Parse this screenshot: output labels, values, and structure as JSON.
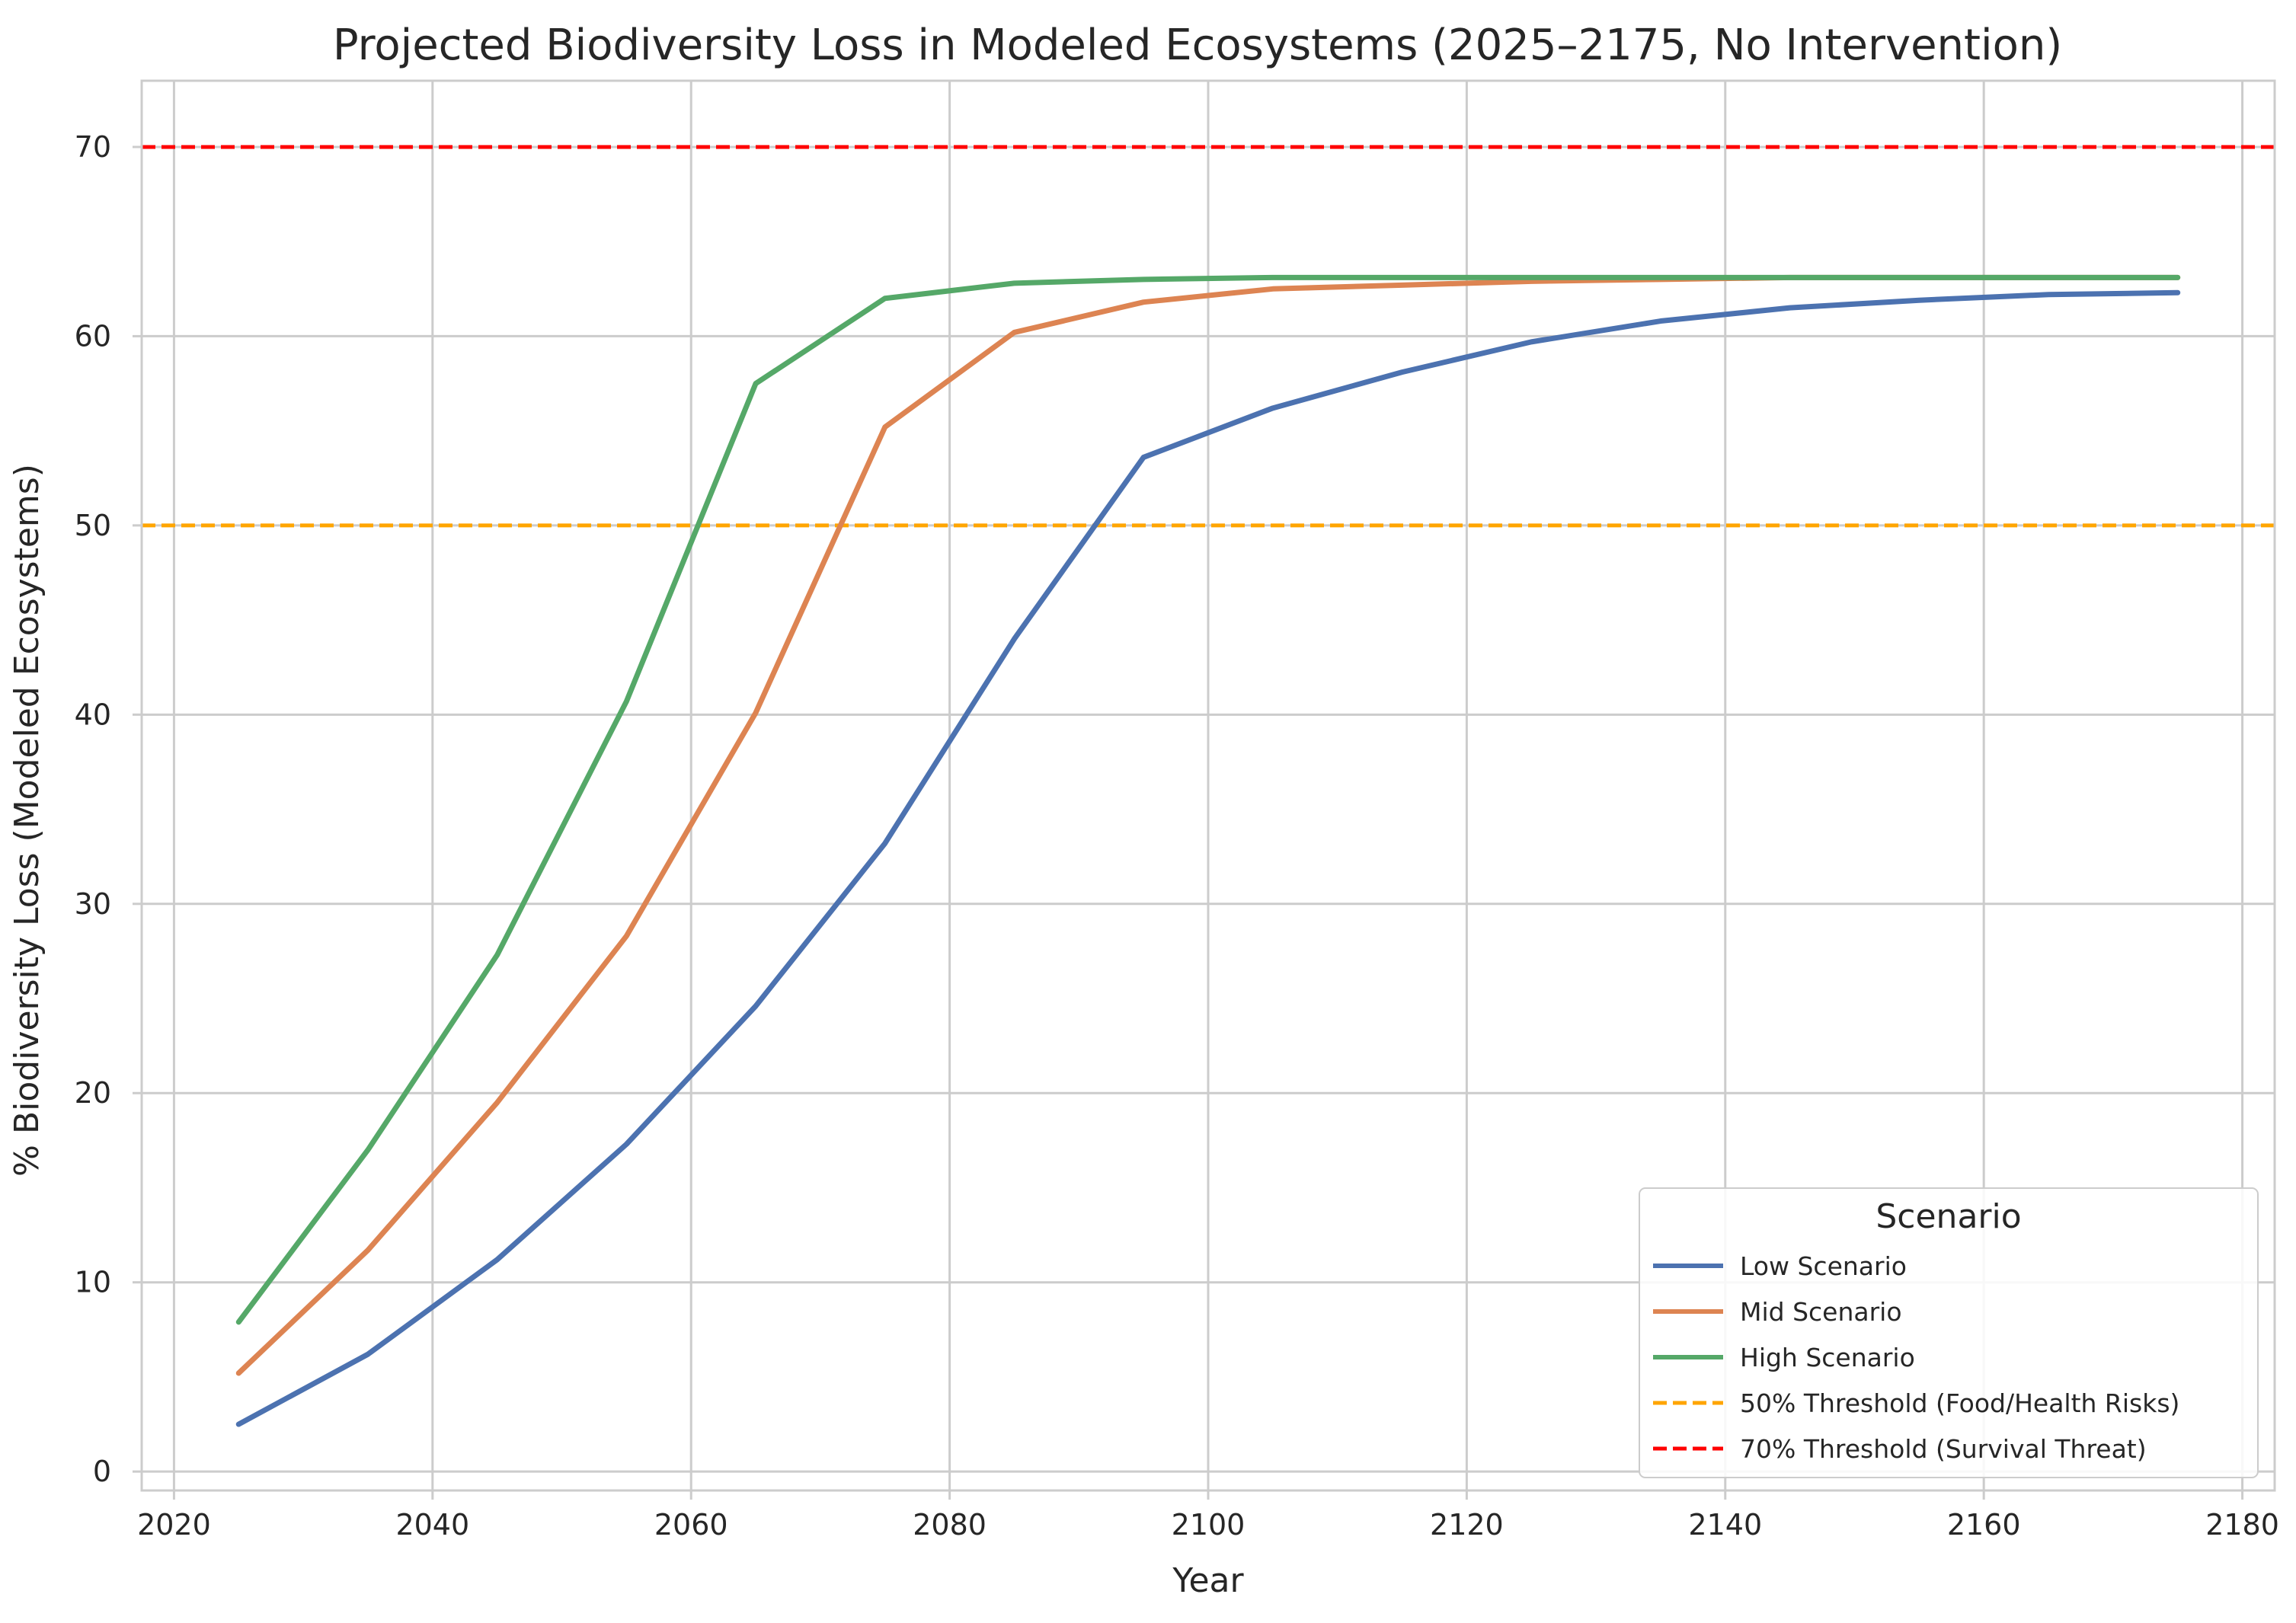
{
  "chart_data": {
    "type": "line",
    "title": "Projected Biodiversity Loss in Modeled Ecosystems (2025–2175, No Intervention)",
    "xlabel": "Year",
    "ylabel": "% Biodiversity Loss (Modeled Ecosystems)",
    "xlim": [
      2017.5,
      2182.5
    ],
    "ylim": [
      -1,
      73.5
    ],
    "xticks": [
      2020,
      2040,
      2060,
      2080,
      2100,
      2120,
      2140,
      2160,
      2180
    ],
    "yticks": [
      0,
      10,
      20,
      30,
      40,
      50,
      60,
      70
    ],
    "grid": true,
    "legend_title": "Scenario",
    "legend_position": "lower right",
    "x": [
      2025,
      2035,
      2045,
      2055,
      2065,
      2075,
      2085,
      2095,
      2105,
      2115,
      2125,
      2135,
      2145,
      2155,
      2165,
      2175
    ],
    "series": [
      {
        "name": "Low Scenario",
        "color": "#4c72b0",
        "values": [
          2.5,
          6.2,
          11.2,
          17.3,
          24.6,
          33.2,
          44.0,
          53.6,
          56.2,
          58.1,
          59.7,
          60.8,
          61.5,
          61.9,
          62.2,
          62.3
        ]
      },
      {
        "name": "Mid Scenario",
        "color": "#dd8452",
        "values": [
          5.2,
          11.7,
          19.5,
          28.3,
          40.1,
          55.2,
          60.2,
          61.8,
          62.5,
          62.7,
          62.9,
          63.0,
          63.1,
          63.1,
          63.1,
          63.1
        ]
      },
      {
        "name": "High Scenario",
        "color": "#55a868",
        "values": [
          7.9,
          17.0,
          27.3,
          40.7,
          57.5,
          62.0,
          62.8,
          63.0,
          63.1,
          63.1,
          63.1,
          63.1,
          63.1,
          63.1,
          63.1,
          63.1
        ]
      }
    ],
    "thresholds": [
      {
        "name": "50% Threshold (Food/Health Risks)",
        "value": 50,
        "color": "#ffa500"
      },
      {
        "name": "70% Threshold (Survival Threat)",
        "value": 70,
        "color": "#ff0000"
      }
    ],
    "colors": {
      "grid": "#cccccc",
      "spine": "#cccccc",
      "text": "#262626"
    }
  }
}
